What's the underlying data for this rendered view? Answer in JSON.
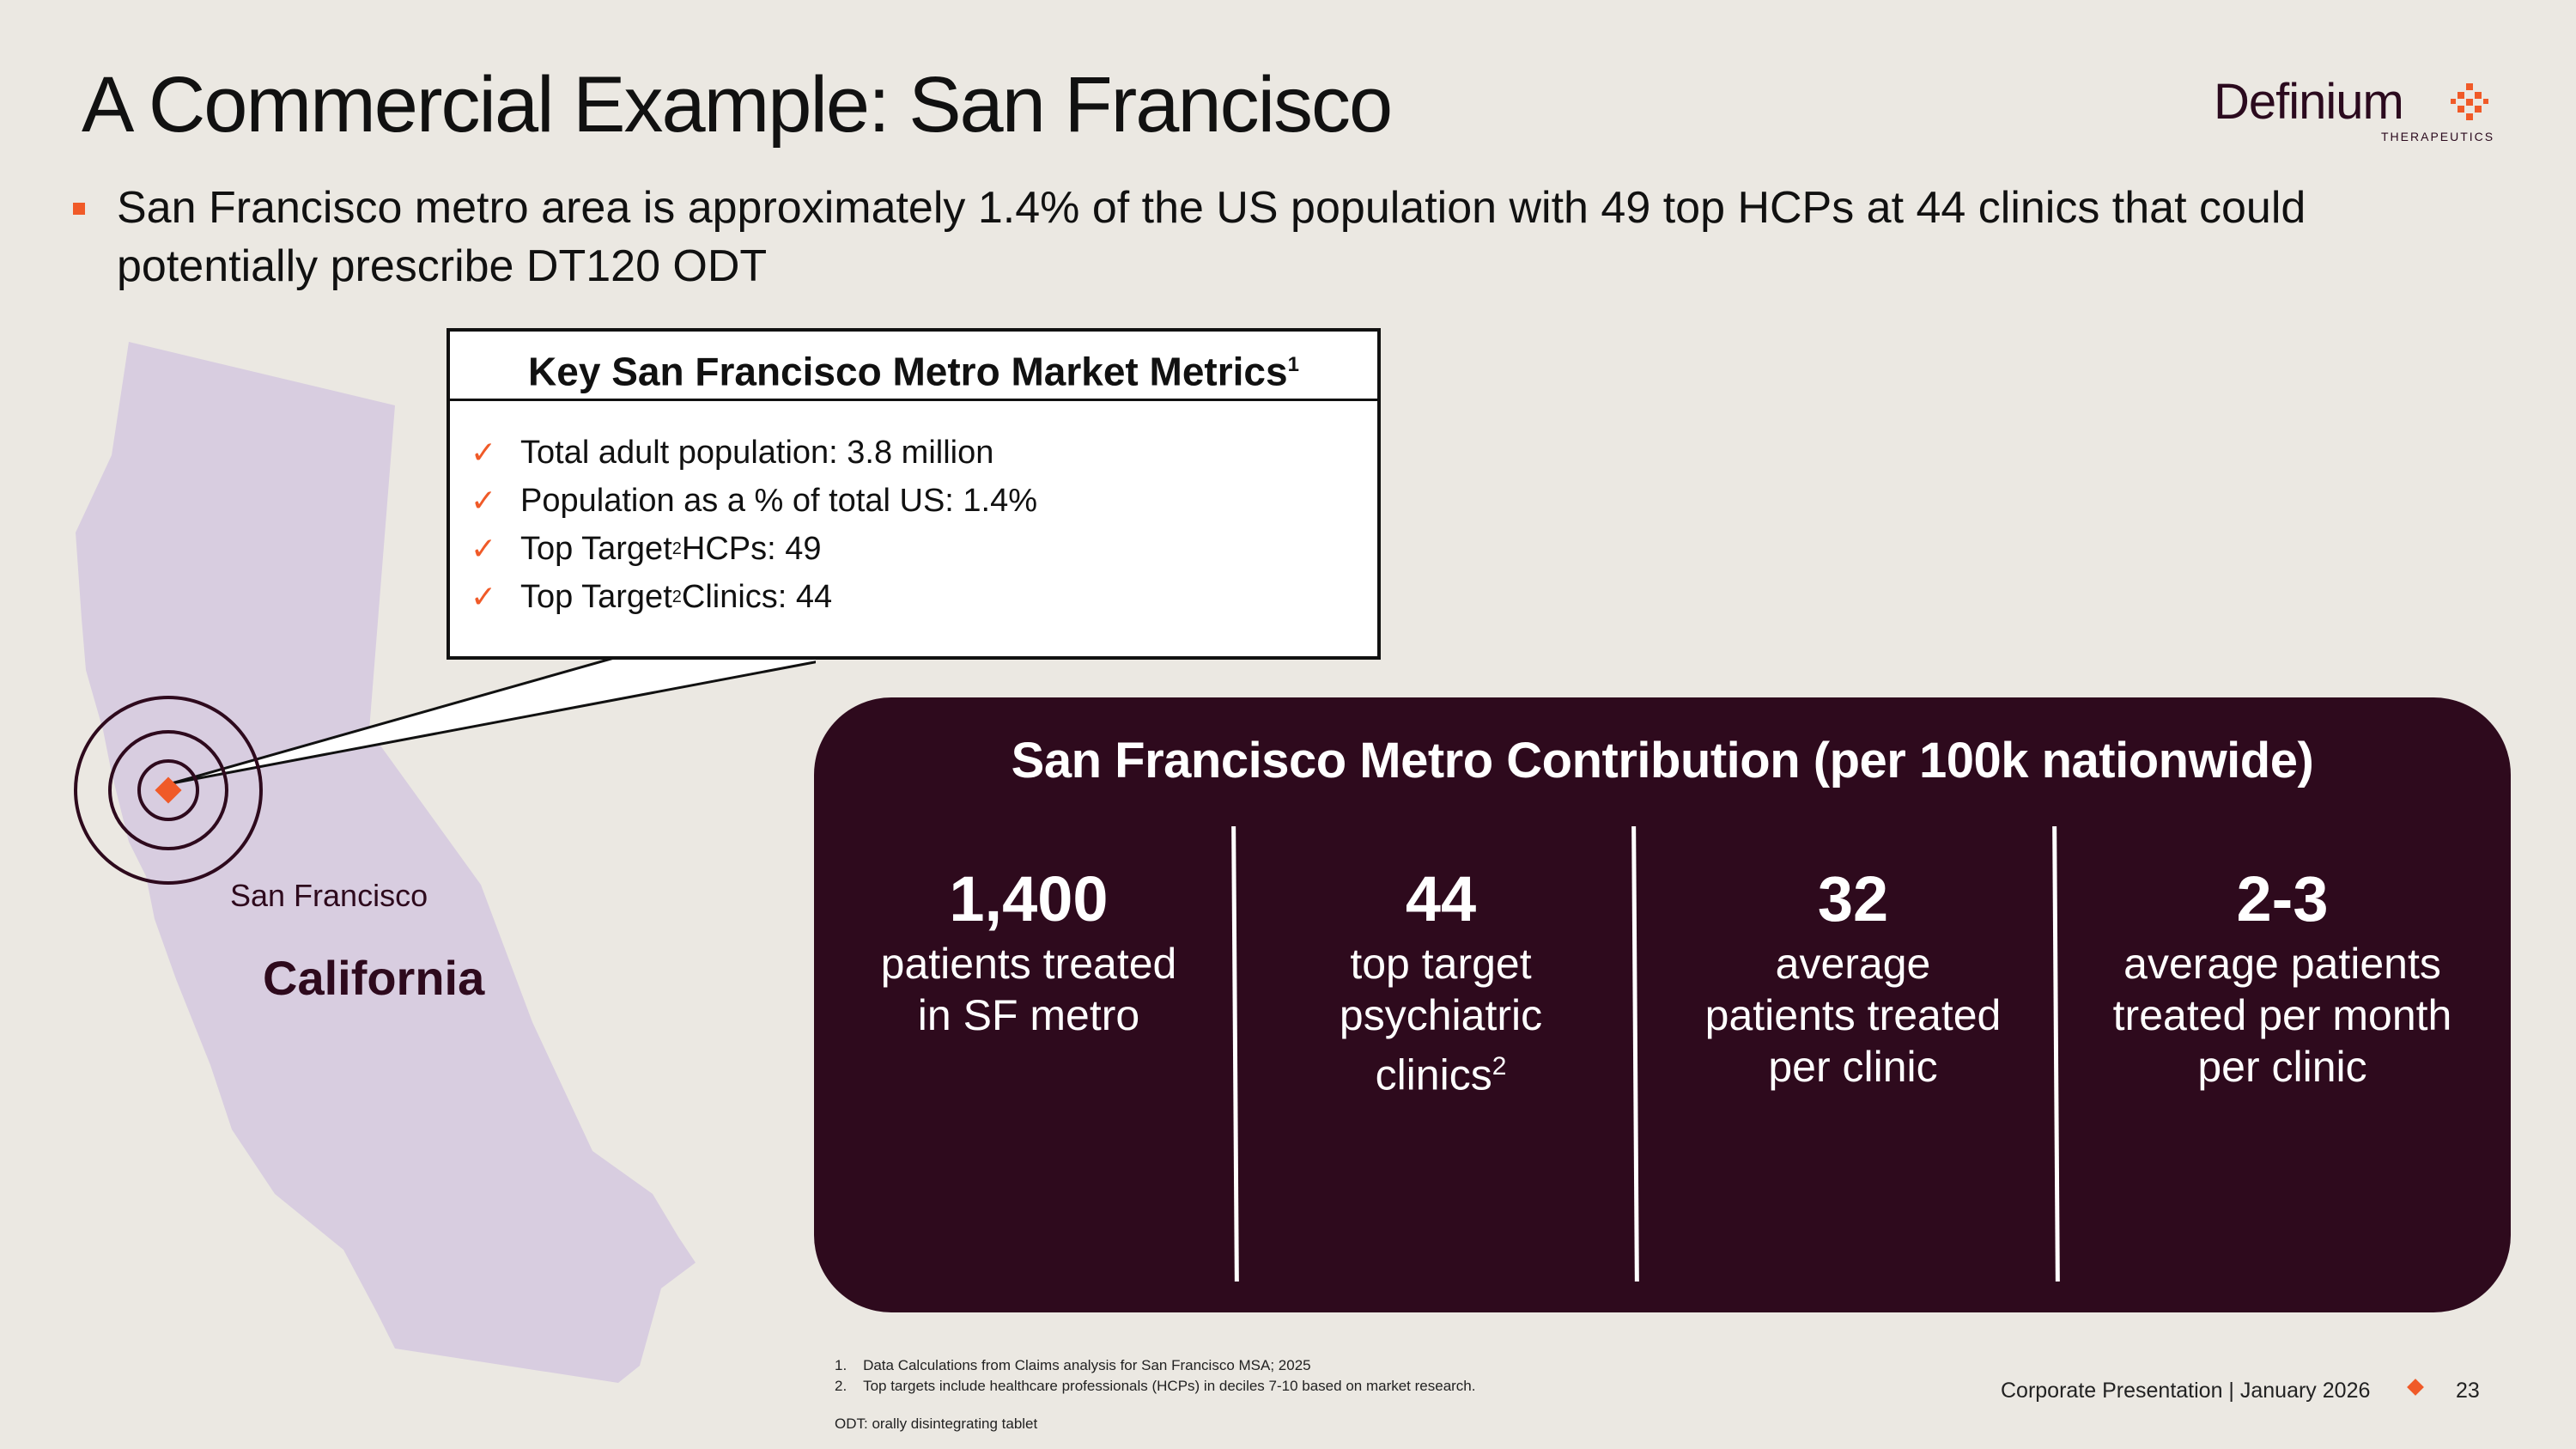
{
  "slide": {
    "title": "A Commercial Example: San Francisco",
    "bullet": "San Francisco metro area is approximately 1.4% of the US population with 49 top HCPs at 44 clinics that could potentially prescribe DT120 ODT"
  },
  "logo": {
    "name": "Definium",
    "sub": "THERAPEUTICS",
    "icon": "dot-grid-icon"
  },
  "map": {
    "city_label": "San Francisco",
    "state_label": "California",
    "icon": "target-rings-icon"
  },
  "metrics": {
    "title": "Key San Francisco Metro Market Metrics",
    "title_sup": "1",
    "items": [
      {
        "text": "Total adult population: 3.8 million",
        "sup": ""
      },
      {
        "text": "Population as a % of total US: 1.4%",
        "sup": ""
      },
      {
        "text": "Top Target",
        "sup": "2",
        "rest": " HCPs: 49"
      },
      {
        "text": "Top Target",
        "sup": "2",
        "rest": " Clinics: 44"
      }
    ]
  },
  "contribution": {
    "title": "San Francisco Metro Contribution (per 100k nationwide)",
    "stats": [
      {
        "value": "1,400",
        "desc": "patients treated\nin SF metro",
        "sup": ""
      },
      {
        "value": "44",
        "desc": "top target\npsychiatric\nclinics",
        "sup": "2"
      },
      {
        "value": "32",
        "desc": "average\npatients treated\nper clinic",
        "sup": ""
      },
      {
        "value": "2-3",
        "desc": "average patients\ntreated per month\nper clinic",
        "sup": ""
      }
    ]
  },
  "footnotes": [
    "1.    Data Calculations from Claims analysis for San Francisco MSA; 2025",
    "2.    Top targets include healthcare professionals (HCPs) in deciles 7-10 based on market research."
  ],
  "odt_note": "ODT: orally disintegrating tablet",
  "footer": {
    "text": "Corporate Presentation | January 2026",
    "page": "23"
  },
  "colors": {
    "accent": "#f05a28",
    "dark": "#2e0a1d",
    "map_fill": "#d8cde0",
    "background": "#ebe8e2"
  }
}
